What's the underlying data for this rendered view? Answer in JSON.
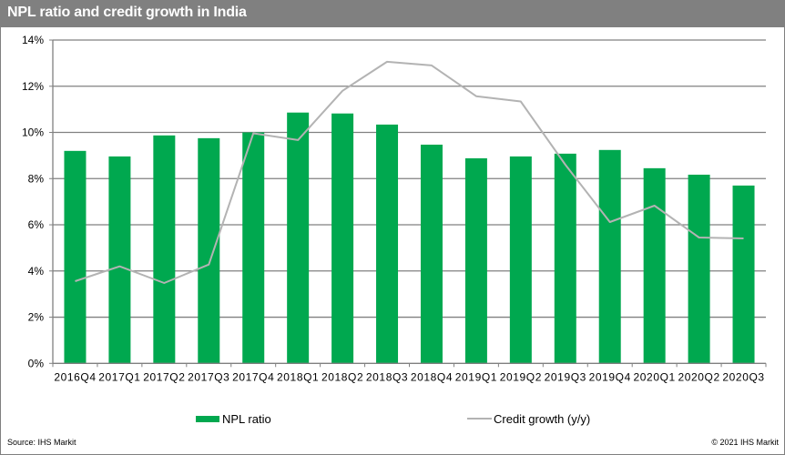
{
  "header": {
    "title": "NPL ratio  and credit growth in India"
  },
  "footer": {
    "source": "Source:  IHS Markit",
    "copyright": "© 2021  IHS Markit"
  },
  "colors": {
    "bar": "#00a84f",
    "line": "#b3b3b3",
    "grid": "#808080",
    "header_bg": "#808080"
  },
  "chart_data": {
    "type": "bar",
    "title": "NPL ratio  and credit growth in India",
    "xlabel": "",
    "ylabel": "",
    "ylim": [
      0,
      14
    ],
    "yticks": [
      0,
      2,
      4,
      6,
      8,
      10,
      12,
      14
    ],
    "ytick_labels": [
      "0%",
      "2%",
      "4%",
      "6%",
      "8%",
      "10%",
      "12%",
      "14%"
    ],
    "grid": true,
    "legend_position": "bottom",
    "categories": [
      "2016Q4",
      "2017Q1",
      "2017Q2",
      "2017Q3",
      "2017Q4",
      "2018Q1",
      "2018Q2",
      "2018Q3",
      "2018Q4",
      "2019Q1",
      "2019Q2",
      "2019Q3",
      "2019Q4",
      "2020Q1",
      "2020Q2",
      "2020Q3"
    ],
    "series": [
      {
        "name": "NPL ratio",
        "type": "bar",
        "values": [
          9.2,
          8.96,
          9.87,
          9.75,
          10.0,
          10.86,
          10.82,
          10.34,
          9.47,
          8.88,
          8.96,
          9.08,
          9.24,
          8.45,
          8.17,
          7.7
        ]
      },
      {
        "name": "Credit growth (y/y)",
        "type": "line",
        "values": [
          3.56,
          4.2,
          3.48,
          4.28,
          9.96,
          9.67,
          11.8,
          13.06,
          12.9,
          11.57,
          11.34,
          8.6,
          6.12,
          6.83,
          5.45,
          5.41
        ]
      }
    ]
  }
}
